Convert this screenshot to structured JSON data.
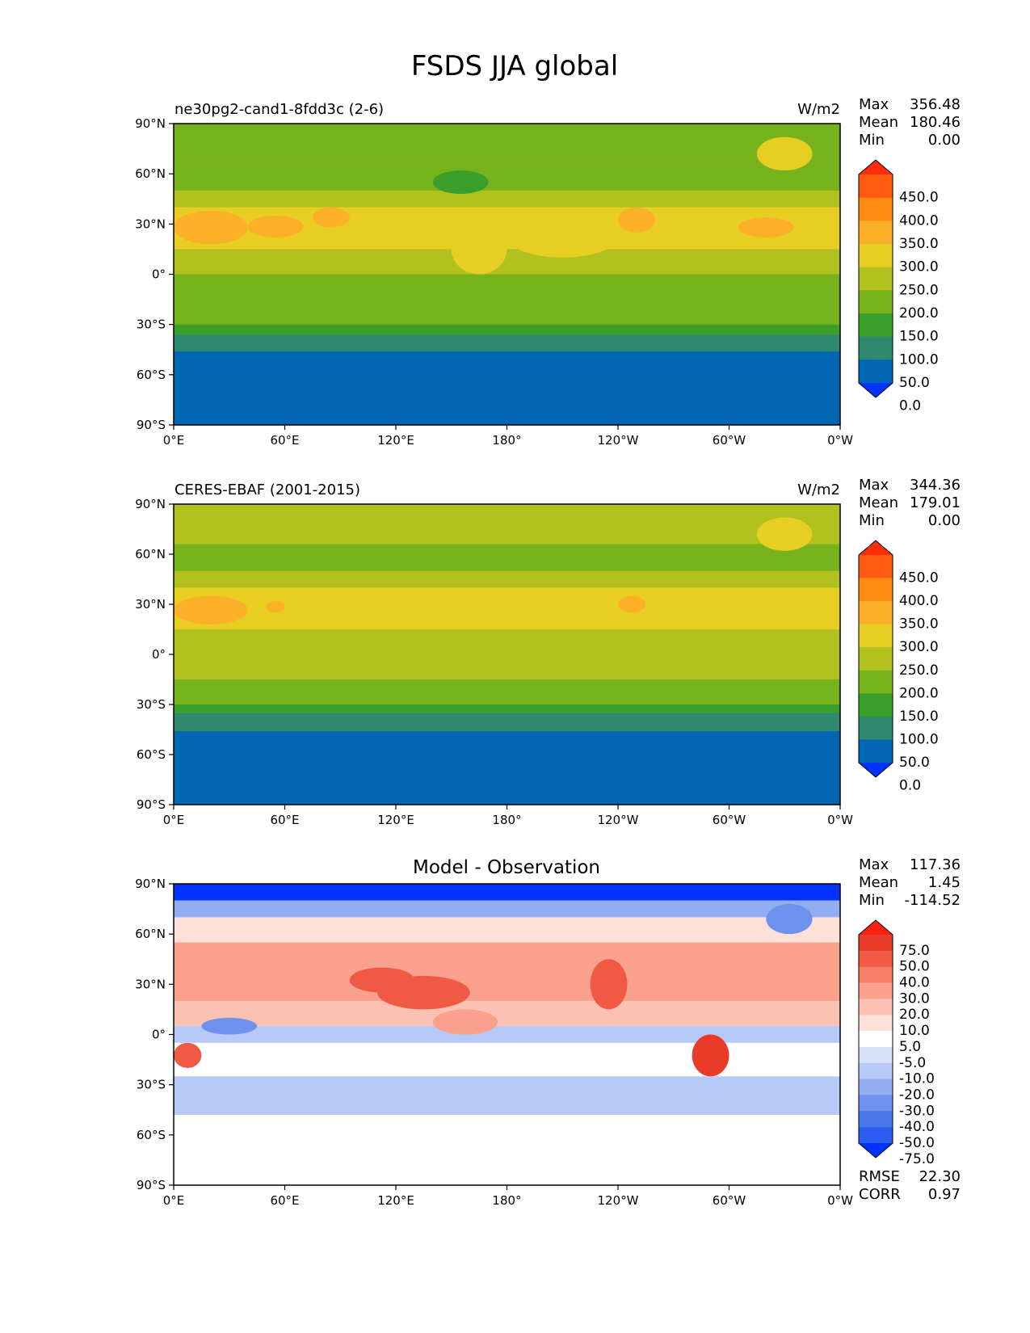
{
  "title": "FSDS JJA global",
  "panels": [
    {
      "left_title": "ne30pg2-cand1-8fdd3c (2-6)",
      "center_title": "",
      "units": "W/m2",
      "stats": [
        {
          "label": "Max",
          "value": "356.48"
        },
        {
          "label": "Mean",
          "value": "180.46"
        },
        {
          "label": "Min",
          "value": "0.00"
        }
      ],
      "colorbar_ticks": [
        "450.0",
        "400.0",
        "350.0",
        "300.0",
        "250.0",
        "200.0",
        "150.0",
        "100.0",
        "50.0",
        "0.0"
      ]
    },
    {
      "left_title": "CERES-EBAF (2001-2015)",
      "center_title": "",
      "units": "W/m2",
      "stats": [
        {
          "label": "Max",
          "value": "344.36"
        },
        {
          "label": "Mean",
          "value": "179.01"
        },
        {
          "label": "Min",
          "value": "0.00"
        }
      ],
      "colorbar_ticks": [
        "450.0",
        "400.0",
        "350.0",
        "300.0",
        "250.0",
        "200.0",
        "150.0",
        "100.0",
        "50.0",
        "0.0"
      ]
    },
    {
      "left_title": "",
      "center_title": "Model - Observation",
      "units": "",
      "stats": [
        {
          "label": "Max",
          "value": "117.36"
        },
        {
          "label": "Mean",
          "value": "1.45"
        },
        {
          "label": "Min",
          "value": "-114.52"
        }
      ],
      "colorbar_ticks": [
        "75.0",
        "50.0",
        "40.0",
        "30.0",
        "20.0",
        "10.0",
        "5.0",
        "-5.0",
        "-10.0",
        "-20.0",
        "-30.0",
        "-40.0",
        "-50.0",
        "-75.0"
      ],
      "bottom_stats": [
        {
          "label": "RMSE",
          "value": "22.30"
        },
        {
          "label": "CORR",
          "value": "0.97"
        }
      ]
    }
  ],
  "chart_data": {
    "type": "heatmap",
    "title": "FSDS JJA global",
    "projection": "cylindrical",
    "xticks": [
      "0°E",
      "60°E",
      "120°E",
      "180°",
      "120°W",
      "60°W",
      "0°W"
    ],
    "yticks": [
      "90°N",
      "60°N",
      "30°N",
      "0°",
      "30°S",
      "60°S",
      "90°S"
    ],
    "xlim_lon": [
      0,
      360
    ],
    "ylim_lat": [
      -90,
      90
    ],
    "abs_levels": [
      0,
      50,
      100,
      150,
      200,
      250,
      300,
      350,
      400,
      450
    ],
    "abs_colors": [
      "#0033ff",
      "#0066b3",
      "#2e8a6e",
      "#3a9e2a",
      "#76b21c",
      "#b1c21f",
      "#e8cd23",
      "#fcb028",
      "#ff8a12",
      "#ff5a10",
      "#ff2e0a"
    ],
    "diff_levels": [
      -75,
      -50,
      -40,
      -30,
      -20,
      -10,
      -5,
      5,
      10,
      20,
      30,
      40,
      50,
      75
    ],
    "diff_colors": [
      "#0033ff",
      "#2a5df0",
      "#4a77ea",
      "#6f91ee",
      "#93adf3",
      "#b6c9f7",
      "#d8e2fb",
      "#ffffff",
      "#fde0d8",
      "#fbc2b3",
      "#f9a18c",
      "#f57f66",
      "#f05a45",
      "#ea3a28",
      "#ff2010"
    ],
    "bands": [
      [
        {
          "lat": [
            84,
            90
          ],
          "value": 175
        },
        {
          "lat": [
            66,
            84
          ],
          "value": 170
        },
        {
          "lat": [
            50,
            66
          ],
          "value": 190
        },
        {
          "lat": [
            40,
            50
          ],
          "value": 215
        },
        {
          "lat": [
            15,
            40
          ],
          "value": 265
        },
        {
          "lat": [
            0,
            15
          ],
          "value": 235
        },
        {
          "lat": [
            -15,
            0
          ],
          "value": 215
        },
        {
          "lat": [
            -30,
            0
          ],
          "value": 175
        },
        {
          "lat": [
            -36,
            -30
          ],
          "value": 130
        },
        {
          "lat": [
            -46,
            -36
          ],
          "value": 75
        },
        {
          "lat": [
            -83,
            -46
          ],
          "value": 25
        },
        {
          "lat": [
            -90,
            -83
          ],
          "value": 0
        }
      ],
      [
        {
          "lat": [
            85,
            90
          ],
          "value": 220
        },
        {
          "lat": [
            66,
            85
          ],
          "value": 210
        },
        {
          "lat": [
            50,
            66
          ],
          "value": 190
        },
        {
          "lat": [
            40,
            50
          ],
          "value": 215
        },
        {
          "lat": [
            15,
            40
          ],
          "value": 265
        },
        {
          "lat": [
            0,
            15
          ],
          "value": 235
        },
        {
          "lat": [
            -15,
            0
          ],
          "value": 210
        },
        {
          "lat": [
            -30,
            -15
          ],
          "value": 175
        },
        {
          "lat": [
            -35,
            -30
          ],
          "value": 130
        },
        {
          "lat": [
            -46,
            -35
          ],
          "value": 75
        },
        {
          "lat": [
            -83,
            -46
          ],
          "value": 25
        },
        {
          "lat": [
            -90,
            -83
          ],
          "value": 0
        }
      ],
      [
        {
          "lat": [
            80,
            90
          ],
          "value": -80
        },
        {
          "lat": [
            70,
            80
          ],
          "value": -30
        },
        {
          "lat": [
            55,
            70
          ],
          "value": 5
        },
        {
          "lat": [
            20,
            55
          ],
          "value": 25
        },
        {
          "lat": [
            5,
            20
          ],
          "value": 10
        },
        {
          "lat": [
            -5,
            5
          ],
          "value": -15
        },
        {
          "lat": [
            -25,
            -5
          ],
          "value": 0
        },
        {
          "lat": [
            -48,
            -25
          ],
          "value": -12
        },
        {
          "lat": [
            -90,
            -48
          ],
          "value": 0
        }
      ]
    ],
    "patches": [
      [
        {
          "lon": [
            0,
            40
          ],
          "lat": [
            18,
            38
          ],
          "value": 310
        },
        {
          "lon": [
            40,
            70
          ],
          "lat": [
            22,
            35
          ],
          "value": 320
        },
        {
          "lon": [
            75,
            95
          ],
          "lat": [
            28,
            40
          ],
          "value": 310
        },
        {
          "lon": [
            315,
            345
          ],
          "lat": [
            62,
            82
          ],
          "value": 290
        },
        {
          "lon": [
            240,
            260
          ],
          "lat": [
            25,
            40
          ],
          "value": 320
        },
        {
          "lon": [
            305,
            335
          ],
          "lat": [
            22,
            34
          ],
          "value": 310
        },
        {
          "lon": [
            140,
            170
          ],
          "lat": [
            48,
            62
          ],
          "value": 140
        },
        {
          "lon": [
            150,
            180
          ],
          "lat": [
            0,
            30
          ],
          "value": 260
        },
        {
          "lon": [
            180,
            240
          ],
          "lat": [
            10,
            35
          ],
          "value": 265
        }
      ],
      [
        {
          "lon": [
            0,
            40
          ],
          "lat": [
            18,
            35
          ],
          "value": 300
        },
        {
          "lon": [
            50,
            60
          ],
          "lat": [
            25,
            32
          ],
          "value": 305
        },
        {
          "lon": [
            240,
            255
          ],
          "lat": [
            25,
            35
          ],
          "value": 310
        },
        {
          "lon": [
            315,
            345
          ],
          "lat": [
            62,
            82
          ],
          "value": 280
        },
        {
          "lon": [
            170,
            230
          ],
          "lat": [
            20,
            35
          ],
          "value": 270
        }
      ],
      [
        {
          "lon": [
            110,
            160
          ],
          "lat": [
            15,
            35
          ],
          "value": 45
        },
        {
          "lon": [
            225,
            245
          ],
          "lat": [
            15,
            45
          ],
          "value": 45
        },
        {
          "lon": [
            280,
            300
          ],
          "lat": [
            -25,
            0
          ],
          "value": 60
        },
        {
          "lon": [
            0,
            15
          ],
          "lat": [
            -20,
            -5
          ],
          "value": 45
        },
        {
          "lon": [
            15,
            45
          ],
          "lat": [
            0,
            10
          ],
          "value": -35
        },
        {
          "lon": [
            320,
            345
          ],
          "lat": [
            60,
            78
          ],
          "value": -40
        },
        {
          "lon": [
            95,
            130
          ],
          "lat": [
            25,
            40
          ],
          "value": 40
        },
        {
          "lon": [
            140,
            175
          ],
          "lat": [
            0,
            15
          ],
          "value": 25
        }
      ]
    ]
  }
}
